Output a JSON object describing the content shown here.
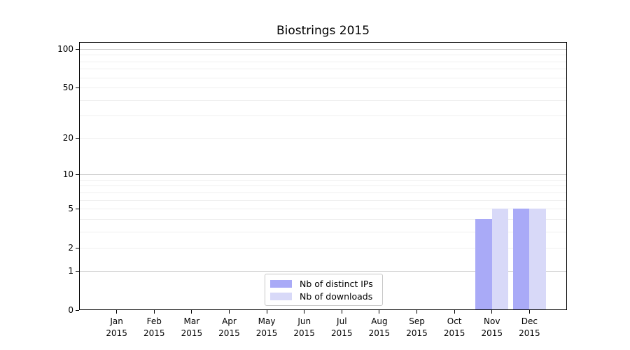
{
  "chart_data": {
    "type": "bar",
    "title": "Biostrings 2015",
    "categories": [
      "Jan",
      "Feb",
      "Mar",
      "Apr",
      "May",
      "Jun",
      "Jul",
      "Aug",
      "Sep",
      "Oct",
      "Nov",
      "Dec"
    ],
    "category_sublabel": "2015",
    "series": [
      {
        "name": "Nb of distinct IPs",
        "color": "#a9aaf7",
        "values": [
          0,
          0,
          0,
          0,
          0,
          0,
          0,
          0,
          0,
          0,
          4,
          5
        ]
      },
      {
        "name": "Nb of downloads",
        "color": "#d8d9f8",
        "values": [
          0,
          0,
          0,
          0,
          0,
          0,
          0,
          0,
          0,
          0,
          5,
          5
        ]
      }
    ],
    "xlabel": "",
    "ylabel": "",
    "y_axis": {
      "scale": "log1p",
      "tick_labels": [
        "0",
        "1",
        "2",
        "5",
        "10",
        "20",
        "50",
        "100"
      ],
      "tick_values": [
        0,
        1,
        2,
        5,
        10,
        20,
        50,
        100
      ],
      "grid_major_values": [
        1,
        10,
        100
      ],
      "grid_minor_values": [
        2,
        3,
        4,
        5,
        6,
        7,
        8,
        9,
        20,
        30,
        40,
        50,
        60,
        70,
        80,
        90
      ],
      "range": [
        0,
        113
      ]
    },
    "grid": "on",
    "legend_position": "bottom-center",
    "colors": {
      "grid_major": "#c9c9c9",
      "grid_minor": "#efefef",
      "frame": "#000000",
      "background": "#ffffff",
      "text": "#000000"
    }
  }
}
